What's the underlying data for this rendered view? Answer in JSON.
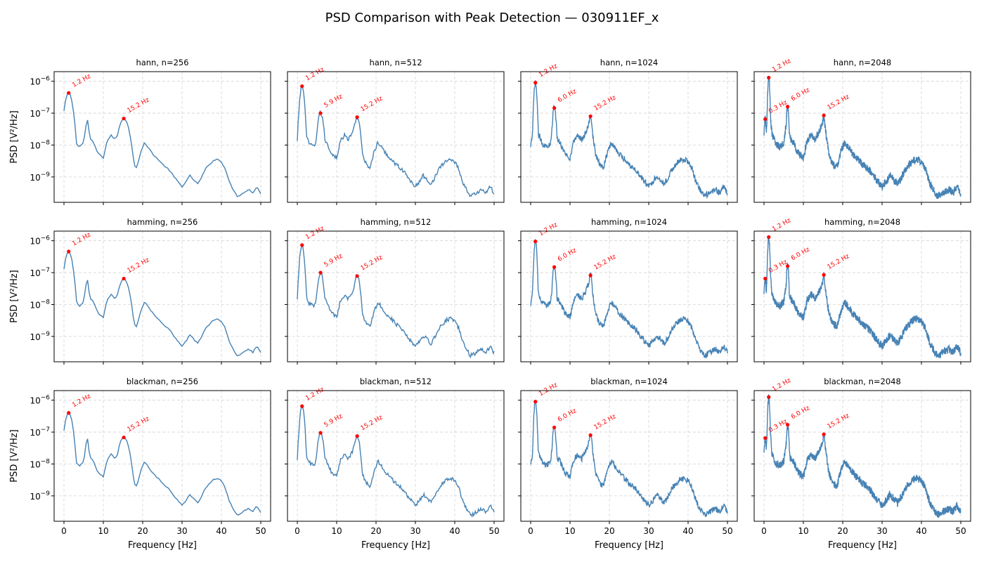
{
  "figure": {
    "title": "PSD Comparison with Peak Detection — 030911EF_x",
    "xlabel": "Frequency [Hz]",
    "ylabel": "PSD [V²/Hz]"
  },
  "colors": {
    "line": "#4682b4",
    "peak": "#ff0000",
    "grid": "#b0b0b0",
    "axis": "#000000"
  },
  "chart_data": {
    "type": "line",
    "layout": "grid 3 rows × 4 columns, shared axes",
    "x_range": [
      0,
      50
    ],
    "xticks": [
      0,
      10,
      20,
      30,
      40,
      50
    ],
    "y_scale": "log",
    "y_range": [
      1.6e-10,
      2e-06
    ],
    "yticks": [
      {
        "value": 1e-09,
        "label": "10⁻⁹"
      },
      {
        "value": 1e-08,
        "label": "10⁻⁸"
      },
      {
        "value": 1e-07,
        "label": "10⁻⁷"
      },
      {
        "value": 1e-06,
        "label": "10⁻⁶"
      }
    ],
    "grid": true,
    "windows": [
      "hann",
      "hamming",
      "blackman"
    ],
    "nperseg": [
      256,
      512,
      1024,
      2048
    ],
    "panels": [
      {
        "title": "hann, n=256",
        "peaks": [
          {
            "f": 1.2,
            "psd": 4.3e-07,
            "label": "1.2 Hz"
          },
          {
            "f": 15.2,
            "psd": 6.8e-08,
            "label": "15.2 Hz"
          }
        ]
      },
      {
        "title": "hann, n=512",
        "peaks": [
          {
            "f": 1.2,
            "psd": 7e-07,
            "label": "1.2 Hz"
          },
          {
            "f": 5.9,
            "psd": 1e-07,
            "label": "5.9 Hz"
          },
          {
            "f": 15.2,
            "psd": 7.5e-08,
            "label": "15.2 Hz"
          }
        ]
      },
      {
        "title": "hann, n=1024",
        "peaks": [
          {
            "f": 1.2,
            "psd": 9e-07,
            "label": "1.2 Hz"
          },
          {
            "f": 6.0,
            "psd": 1.45e-07,
            "label": "6.0 Hz"
          },
          {
            "f": 15.2,
            "psd": 8e-08,
            "label": "15.2 Hz"
          }
        ]
      },
      {
        "title": "hann, n=2048",
        "peaks": [
          {
            "f": 0.3,
            "psd": 6.5e-08,
            "label": "0.3 Hz"
          },
          {
            "f": 1.2,
            "psd": 1.3e-06,
            "label": "1.2 Hz"
          },
          {
            "f": 6.0,
            "psd": 1.6e-07,
            "label": "6.0 Hz"
          },
          {
            "f": 15.2,
            "psd": 8.5e-08,
            "label": "15.2 Hz"
          }
        ]
      },
      {
        "title": "hamming, n=256",
        "peaks": [
          {
            "f": 1.2,
            "psd": 4.6e-07,
            "label": "1.2 Hz"
          },
          {
            "f": 15.2,
            "psd": 6.5e-08,
            "label": "15.2 Hz"
          }
        ]
      },
      {
        "title": "hamming, n=512",
        "peaks": [
          {
            "f": 1.2,
            "psd": 7.3e-07,
            "label": "1.2 Hz"
          },
          {
            "f": 5.9,
            "psd": 1e-07,
            "label": "5.9 Hz"
          },
          {
            "f": 15.2,
            "psd": 7.8e-08,
            "label": "15.2 Hz"
          }
        ]
      },
      {
        "title": "hamming, n=1024",
        "peaks": [
          {
            "f": 1.2,
            "psd": 9.5e-07,
            "label": "1.2 Hz"
          },
          {
            "f": 6.0,
            "psd": 1.5e-07,
            "label": "6.0 Hz"
          },
          {
            "f": 15.2,
            "psd": 8.2e-08,
            "label": "15.2 Hz"
          }
        ]
      },
      {
        "title": "hamming, n=2048",
        "peaks": [
          {
            "f": 0.3,
            "psd": 6.5e-08,
            "label": "0.3 Hz"
          },
          {
            "f": 1.2,
            "psd": 1.3e-06,
            "label": "1.2 Hz"
          },
          {
            "f": 6.0,
            "psd": 1.6e-07,
            "label": "6.0 Hz"
          },
          {
            "f": 15.2,
            "psd": 8.5e-08,
            "label": "15.2 Hz"
          }
        ]
      },
      {
        "title": "blackman, n=256",
        "peaks": [
          {
            "f": 1.2,
            "psd": 4e-07,
            "label": "1.2 Hz"
          },
          {
            "f": 15.2,
            "psd": 6.8e-08,
            "label": "15.2 Hz"
          }
        ]
      },
      {
        "title": "blackman, n=512",
        "peaks": [
          {
            "f": 1.2,
            "psd": 6.5e-07,
            "label": "1.2 Hz"
          },
          {
            "f": 5.9,
            "psd": 9.5e-08,
            "label": "5.9 Hz"
          },
          {
            "f": 15.2,
            "psd": 7.5e-08,
            "label": "15.2 Hz"
          }
        ]
      },
      {
        "title": "blackman, n=1024",
        "peaks": [
          {
            "f": 1.2,
            "psd": 9e-07,
            "label": "1.2 Hz"
          },
          {
            "f": 6.0,
            "psd": 1.4e-07,
            "label": "6.0 Hz"
          },
          {
            "f": 15.2,
            "psd": 8e-08,
            "label": "15.2 Hz"
          }
        ]
      },
      {
        "title": "blackman, n=2048",
        "peaks": [
          {
            "f": 0.3,
            "psd": 6.5e-08,
            "label": "0.3 Hz"
          },
          {
            "f": 1.2,
            "psd": 1.25e-06,
            "label": "1.2 Hz"
          },
          {
            "f": 6.0,
            "psd": 1.7e-07,
            "label": "6.0 Hz"
          },
          {
            "f": 15.2,
            "psd": 8.5e-08,
            "label": "15.2 Hz"
          }
        ]
      }
    ],
    "spectrum_envelope": {
      "freq": [
        0,
        0.6,
        1.2,
        2.0,
        3.0,
        4.0,
        5.0,
        5.9,
        6.6,
        7.5,
        8.5,
        9.0,
        10.0,
        11.0,
        12.0,
        13.0,
        14.0,
        15.2,
        16.5,
        17.5,
        18.5,
        19.5,
        20.5,
        21.5,
        23.0,
        24.0,
        25.0,
        26.0,
        27.0,
        28.0,
        29.0,
        30.0,
        31.0,
        32.0,
        33.0,
        34.0,
        35.0,
        36.0,
        37.0,
        38.0,
        39.0,
        40.0,
        41.0,
        42.0,
        43.0,
        44.0,
        45.0,
        46.0,
        47.0,
        48.0,
        49.0,
        50.0
      ],
      "psd": [
        8e-09,
        3e-08,
        4.3e-07,
        2.2e-08,
        1.1e-08,
        9e-09,
        1.2e-08,
        7.5e-08,
        1.6e-08,
        1.2e-08,
        6e-09,
        5e-09,
        4e-09,
        1.4e-08,
        2e-08,
        1.5e-08,
        2.5e-08,
        6.8e-08,
        5e-09,
        2.5e-09,
        2e-09,
        6e-09,
        1.2e-08,
        8e-09,
        4.5e-09,
        3.5e-09,
        2.5e-09,
        2e-09,
        1.5e-09,
        1e-09,
        7e-10,
        5e-10,
        7e-10,
        1.1e-09,
        8e-10,
        6e-10,
        1e-09,
        1.8e-09,
        2.5e-09,
        3.3e-09,
        3.6e-09,
        3e-09,
        1.8e-09,
        7e-10,
        4e-10,
        2.5e-10,
        2.8e-10,
        3.5e-10,
        4e-10,
        3.2e-10,
        5e-10,
        3e-10
      ]
    }
  }
}
